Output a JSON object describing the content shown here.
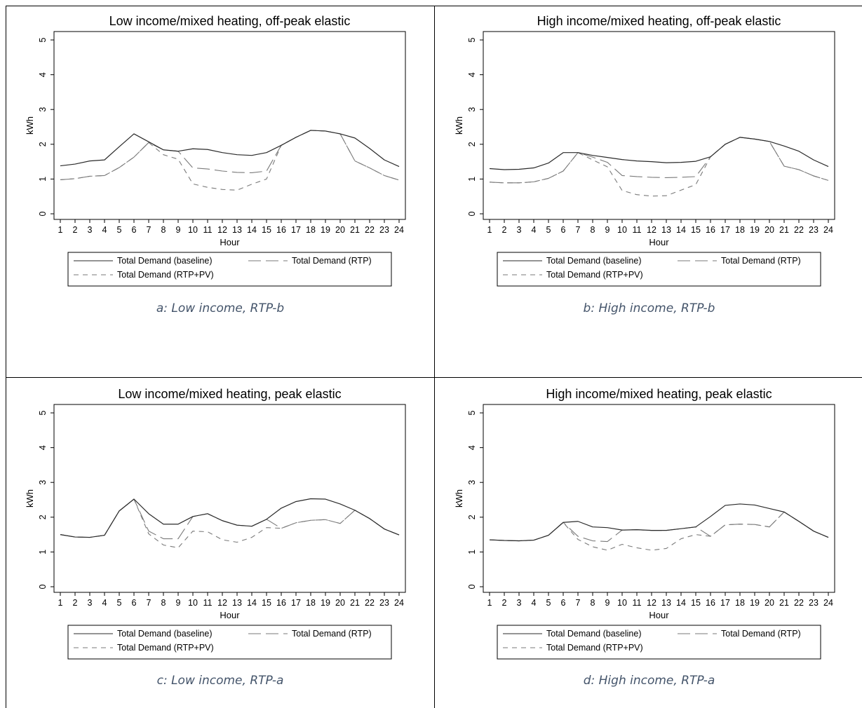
{
  "chart_data": [
    {
      "type": "line",
      "title": "Low income/mixed heating, off-peak elastic",
      "caption": "a: Low income, RTP-b",
      "xlabel": "Hour",
      "ylabel": "kWh",
      "x": [
        1,
        2,
        3,
        4,
        5,
        6,
        7,
        8,
        9,
        10,
        11,
        12,
        13,
        14,
        15,
        16,
        17,
        18,
        19,
        20,
        21,
        22,
        23,
        24
      ],
      "xlim": [
        1,
        24
      ],
      "ylim": [
        0,
        5
      ],
      "yticks": [
        0,
        1,
        2,
        3,
        4,
        5
      ],
      "grid": false,
      "legend_position": "bottom",
      "series": [
        {
          "name": "Total Demand (baseline)",
          "style": "solid",
          "values": [
            1.38,
            1.43,
            1.52,
            1.55,
            1.93,
            2.3,
            2.07,
            1.84,
            1.8,
            1.87,
            1.85,
            1.76,
            1.7,
            1.68,
            1.76,
            1.97,
            2.2,
            2.4,
            2.38,
            2.3,
            2.18,
            1.88,
            1.55,
            1.36
          ]
        },
        {
          "name": "Total Demand (RTP)",
          "style": "longdash",
          "values": [
            0.98,
            1.01,
            1.08,
            1.1,
            1.33,
            1.63,
            2.05,
            1.84,
            1.8,
            1.32,
            1.29,
            1.23,
            1.19,
            1.18,
            1.23,
            1.97,
            2.2,
            2.4,
            2.38,
            2.3,
            1.52,
            1.32,
            1.1,
            0.97
          ]
        },
        {
          "name": "Total Demand (RTP+PV)",
          "style": "shortdash",
          "values": [
            0.98,
            1.01,
            1.08,
            1.1,
            1.33,
            1.63,
            2.05,
            1.7,
            1.57,
            0.86,
            0.76,
            0.7,
            0.68,
            0.85,
            1.0,
            1.97,
            2.2,
            2.4,
            2.38,
            2.3,
            1.52,
            1.32,
            1.1,
            0.97
          ]
        }
      ]
    },
    {
      "type": "line",
      "title": "High income/mixed heating, off-peak elastic",
      "caption": "b: High income, RTP-b",
      "xlabel": "Hour",
      "ylabel": "kWh",
      "x": [
        1,
        2,
        3,
        4,
        5,
        6,
        7,
        8,
        9,
        10,
        11,
        12,
        13,
        14,
        15,
        16,
        17,
        18,
        19,
        20,
        21,
        22,
        23,
        24
      ],
      "xlim": [
        1,
        24
      ],
      "ylim": [
        0,
        5
      ],
      "yticks": [
        0,
        1,
        2,
        3,
        4,
        5
      ],
      "grid": false,
      "legend_position": "bottom",
      "series": [
        {
          "name": "Total Demand (baseline)",
          "style": "solid",
          "values": [
            1.3,
            1.27,
            1.28,
            1.32,
            1.46,
            1.76,
            1.76,
            1.68,
            1.62,
            1.56,
            1.52,
            1.5,
            1.47,
            1.48,
            1.51,
            1.64,
            2.0,
            2.2,
            2.15,
            2.08,
            1.95,
            1.8,
            1.55,
            1.36
          ]
        },
        {
          "name": "Total Demand (RTP)",
          "style": "longdash",
          "values": [
            0.91,
            0.89,
            0.89,
            0.92,
            1.02,
            1.23,
            1.76,
            1.63,
            1.48,
            1.1,
            1.07,
            1.05,
            1.04,
            1.05,
            1.07,
            1.64,
            2.0,
            2.2,
            2.15,
            2.08,
            1.37,
            1.27,
            1.09,
            0.96
          ]
        },
        {
          "name": "Total Demand (RTP+PV)",
          "style": "shortdash",
          "values": [
            0.91,
            0.89,
            0.89,
            0.92,
            1.02,
            1.23,
            1.76,
            1.55,
            1.35,
            0.67,
            0.55,
            0.51,
            0.52,
            0.68,
            0.84,
            1.64,
            2.0,
            2.2,
            2.15,
            2.08,
            1.37,
            1.27,
            1.09,
            0.96
          ]
        }
      ]
    },
    {
      "type": "line",
      "title": "Low income/mixed heating, peak elastic",
      "caption": "c: Low income, RTP-a",
      "xlabel": "Hour",
      "ylabel": "kWh",
      "x": [
        1,
        2,
        3,
        4,
        5,
        6,
        7,
        8,
        9,
        10,
        11,
        12,
        13,
        14,
        15,
        16,
        17,
        18,
        19,
        20,
        21,
        22,
        23,
        24
      ],
      "xlim": [
        1,
        24
      ],
      "ylim": [
        0,
        5
      ],
      "yticks": [
        0,
        1,
        2,
        3,
        4,
        5
      ],
      "grid": false,
      "legend_position": "bottom",
      "series": [
        {
          "name": "Total Demand (baseline)",
          "style": "solid",
          "values": [
            1.5,
            1.43,
            1.42,
            1.48,
            2.18,
            2.52,
            2.1,
            1.8,
            1.8,
            2.02,
            2.1,
            1.9,
            1.77,
            1.74,
            1.94,
            2.26,
            2.45,
            2.53,
            2.52,
            2.38,
            2.2,
            1.96,
            1.66,
            1.49
          ]
        },
        {
          "name": "Total Demand (RTP)",
          "style": "longdash",
          "values": [
            1.5,
            1.43,
            1.42,
            1.48,
            2.18,
            2.52,
            1.6,
            1.38,
            1.38,
            2.02,
            2.1,
            1.9,
            1.77,
            1.74,
            1.94,
            1.68,
            1.84,
            1.91,
            1.93,
            1.82,
            2.2,
            1.96,
            1.66,
            1.49
          ]
        },
        {
          "name": "Total Demand (RTP+PV)",
          "style": "shortdash",
          "values": [
            1.5,
            1.43,
            1.42,
            1.48,
            2.18,
            2.52,
            1.52,
            1.2,
            1.12,
            1.6,
            1.58,
            1.35,
            1.28,
            1.42,
            1.7,
            1.68,
            1.84,
            1.91,
            1.93,
            1.82,
            2.2,
            1.96,
            1.66,
            1.49
          ]
        }
      ]
    },
    {
      "type": "line",
      "title": "High income/mixed heating, peak elastic",
      "caption": "d: High income, RTP-a",
      "xlabel": "Hour",
      "ylabel": "kWh",
      "x": [
        1,
        2,
        3,
        4,
        5,
        6,
        7,
        8,
        9,
        10,
        11,
        12,
        13,
        14,
        15,
        16,
        17,
        18,
        19,
        20,
        21,
        22,
        23,
        24
      ],
      "xlim": [
        1,
        24
      ],
      "ylim": [
        0,
        5
      ],
      "yticks": [
        0,
        1,
        2,
        3,
        4,
        5
      ],
      "grid": false,
      "legend_position": "bottom",
      "series": [
        {
          "name": "Total Demand (baseline)",
          "style": "solid",
          "values": [
            1.35,
            1.33,
            1.32,
            1.34,
            1.48,
            1.85,
            1.88,
            1.72,
            1.7,
            1.63,
            1.64,
            1.62,
            1.62,
            1.67,
            1.72,
            2.02,
            2.34,
            2.38,
            2.35,
            2.25,
            2.15,
            1.88,
            1.6,
            1.42
          ]
        },
        {
          "name": "Total Demand (RTP)",
          "style": "longdash",
          "values": [
            1.35,
            1.33,
            1.32,
            1.34,
            1.48,
            1.85,
            1.45,
            1.32,
            1.3,
            1.63,
            1.64,
            1.62,
            1.62,
            1.67,
            1.72,
            1.45,
            1.78,
            1.8,
            1.79,
            1.72,
            2.15,
            1.88,
            1.6,
            1.42
          ]
        },
        {
          "name": "Total Demand (RTP+PV)",
          "style": "shortdash",
          "values": [
            1.35,
            1.33,
            1.32,
            1.34,
            1.48,
            1.85,
            1.36,
            1.15,
            1.05,
            1.22,
            1.12,
            1.05,
            1.1,
            1.38,
            1.5,
            1.45,
            1.78,
            1.8,
            1.79,
            1.72,
            2.15,
            1.88,
            1.6,
            1.42
          ]
        }
      ]
    }
  ]
}
